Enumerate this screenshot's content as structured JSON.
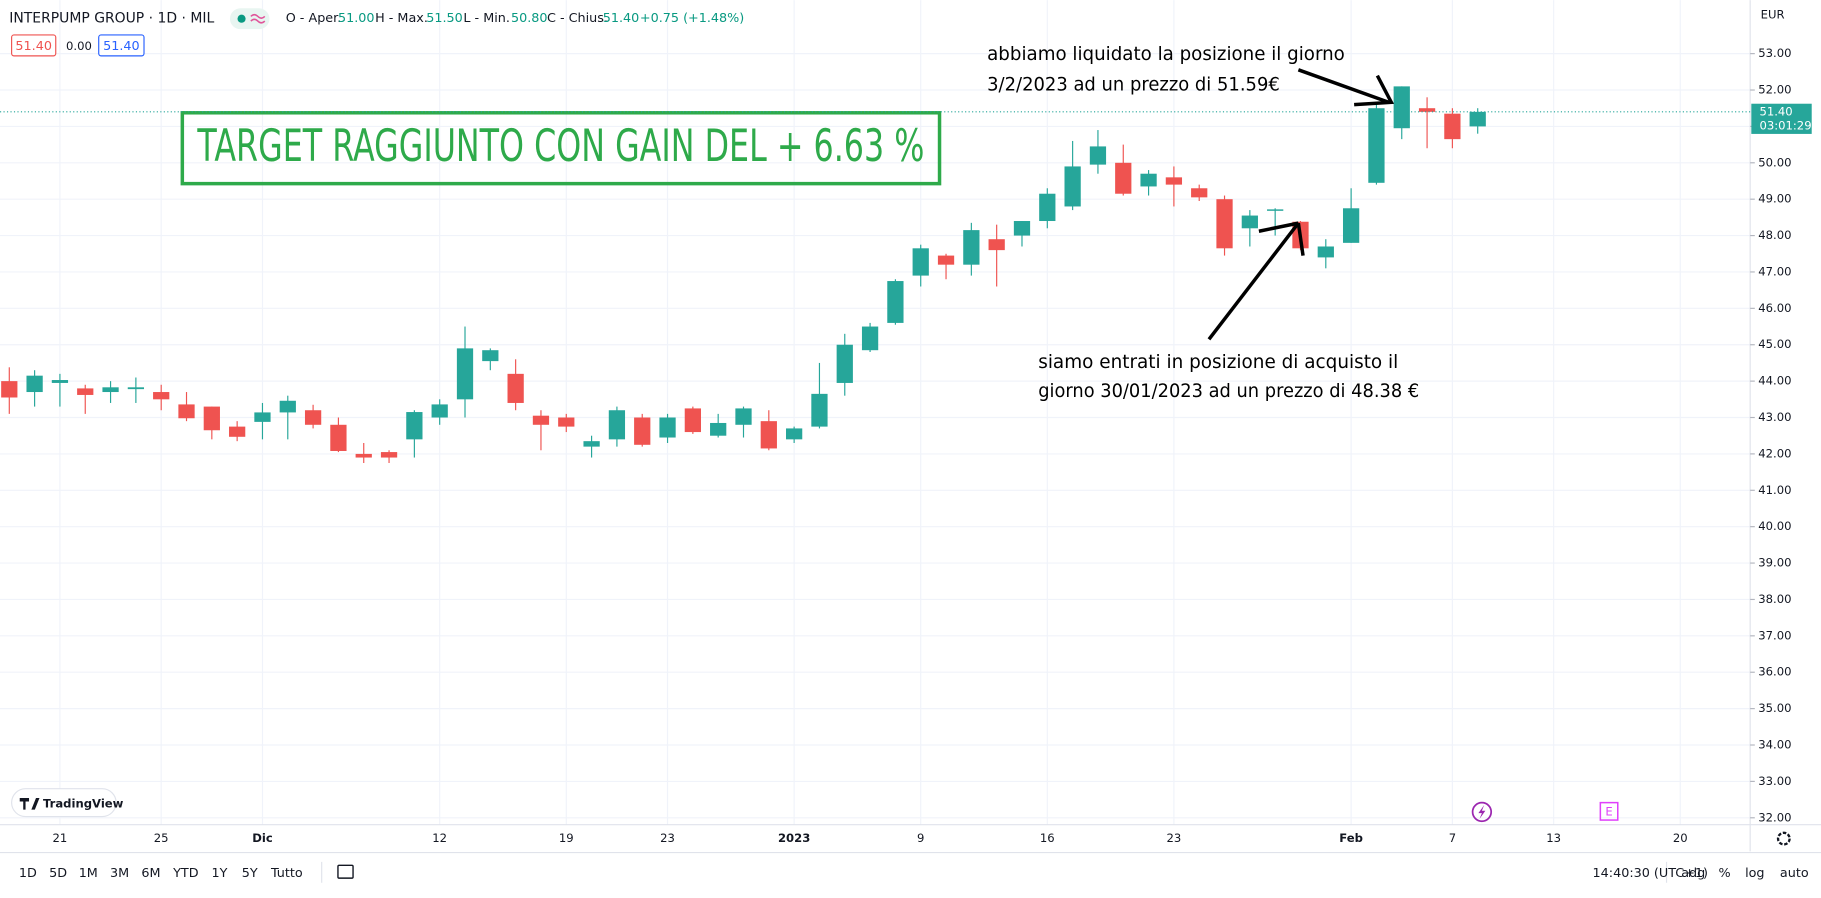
{
  "header": {
    "symbol": "INTERPUMP GROUP · 1D · MIL",
    "ohlc": [
      {
        "label": "O - Aper.",
        "value": "51.00"
      },
      {
        "label": "H - Max.",
        "value": "51.50"
      },
      {
        "label": "L - Min.",
        "value": "50.80"
      },
      {
        "label": "C - Chius.",
        "value": "51.40"
      }
    ],
    "change": "+0.75 (+1.48%)",
    "sell": "51.40",
    "spread": "0.00",
    "buy": "51.40",
    "currency": "EUR"
  },
  "chart_data": {
    "type": "candlestick",
    "categories": [
      null,
      null,
      "21",
      null,
      null,
      null,
      "25",
      null,
      null,
      null,
      "Dic",
      null,
      null,
      null,
      null,
      null,
      null,
      "12",
      null,
      null,
      null,
      null,
      "19",
      null,
      null,
      null,
      "23",
      null,
      null,
      null,
      null,
      "2023",
      null,
      null,
      null,
      null,
      "9",
      null,
      null,
      null,
      null,
      "16",
      null,
      null,
      null,
      null,
      "23",
      null,
      null,
      null,
      null,
      null,
      null,
      "Feb",
      null,
      null,
      null,
      "7",
      null,
      null,
      null,
      "13",
      null,
      null,
      null,
      null,
      "20",
      null,
      null
    ],
    "open": [
      44.0,
      43.7,
      43.95,
      43.8,
      43.7,
      43.78,
      43.7,
      43.36,
      43.3,
      42.75,
      42.88,
      43.14,
      43.2,
      42.8,
      42.0,
      42.05,
      42.4,
      43.0,
      43.5,
      44.55,
      44.2,
      43.05,
      43.0,
      42.2,
      42.4,
      43.0,
      42.45,
      43.25,
      42.5,
      42.8,
      42.9,
      42.4,
      42.75,
      43.95,
      44.85,
      45.6,
      46.9,
      47.45,
      47.2,
      47.9,
      48.0,
      48.4,
      48.8,
      49.95,
      50.0,
      49.35,
      49.6,
      49.3,
      49.0,
      48.2,
      48.68,
      48.38,
      47.4,
      47.8,
      49.45,
      50.95,
      51.5,
      51.35,
      51.0,
      null,
      null,
      null,
      null,
      null,
      null,
      null,
      null,
      null,
      null
    ],
    "high": [
      44.38,
      44.3,
      44.2,
      43.9,
      44.0,
      44.1,
      43.9,
      43.7,
      43.3,
      42.9,
      43.4,
      43.6,
      43.35,
      43.0,
      42.3,
      42.1,
      43.2,
      43.5,
      45.5,
      44.9,
      44.6,
      43.2,
      43.1,
      42.5,
      43.3,
      43.1,
      43.1,
      43.3,
      43.1,
      43.3,
      43.2,
      42.75,
      44.5,
      45.3,
      45.6,
      46.8,
      47.75,
      47.5,
      48.35,
      48.3,
      48.4,
      49.3,
      50.6,
      50.9,
      50.5,
      49.8,
      49.9,
      49.4,
      49.1,
      48.7,
      48.75,
      48.4,
      47.9,
      49.3,
      51.6,
      52.1,
      51.8,
      51.5,
      51.5,
      null,
      null,
      null,
      null,
      null,
      null,
      null,
      null,
      null,
      null
    ],
    "low": [
      43.1,
      43.3,
      43.3,
      43.1,
      43.4,
      43.4,
      43.2,
      42.9,
      42.4,
      42.35,
      42.4,
      42.4,
      42.7,
      42.05,
      41.75,
      41.75,
      41.9,
      42.8,
      43.0,
      44.3,
      43.2,
      42.1,
      42.6,
      41.9,
      42.2,
      42.2,
      42.3,
      42.55,
      42.45,
      42.45,
      42.1,
      42.3,
      42.7,
      43.6,
      44.8,
      45.55,
      46.6,
      46.8,
      46.9,
      46.6,
      47.7,
      48.2,
      48.7,
      49.7,
      49.1,
      49.1,
      48.8,
      48.95,
      47.45,
      47.7,
      48.0,
      47.6,
      47.1,
      47.8,
      49.4,
      50.65,
      50.4,
      50.4,
      50.8,
      null,
      null,
      null,
      null,
      null,
      null,
      null,
      null,
      null,
      null
    ],
    "close": [
      43.55,
      44.15,
      44.03,
      43.62,
      43.83,
      43.83,
      43.5,
      42.98,
      42.65,
      42.47,
      43.14,
      43.46,
      42.8,
      42.08,
      41.9,
      41.9,
      43.15,
      43.36,
      44.9,
      44.85,
      43.4,
      42.8,
      42.75,
      42.35,
      43.2,
      42.25,
      43.0,
      42.6,
      42.85,
      43.25,
      42.15,
      42.7,
      43.65,
      45.0,
      45.5,
      46.75,
      47.65,
      47.2,
      48.15,
      47.6,
      48.4,
      49.15,
      49.9,
      50.45,
      49.15,
      49.7,
      49.4,
      49.05,
      47.65,
      48.55,
      48.72,
      47.65,
      47.7,
      48.75,
      51.5,
      52.1,
      51.4,
      50.65,
      51.4,
      null,
      null,
      null,
      null,
      null,
      null,
      null,
      null,
      null,
      null
    ],
    "up_color": "#26a69a",
    "down_color": "#ef5350",
    "ylim": [
      31.81,
      54.47
    ],
    "yticks": [
      {
        "value": 32,
        "label": "32.00"
      },
      {
        "value": 33,
        "label": "33.00"
      },
      {
        "value": 34,
        "label": "34.00"
      },
      {
        "value": 35,
        "label": "35.00"
      },
      {
        "value": 36,
        "label": "36.00"
      },
      {
        "value": 37,
        "label": "37.00"
      },
      {
        "value": 38,
        "label": "38.00"
      },
      {
        "value": 39,
        "label": "39.00"
      },
      {
        "value": 40,
        "label": "40.00"
      },
      {
        "value": 41,
        "label": "41.00"
      },
      {
        "value": 42,
        "label": "42.00"
      },
      {
        "value": 43,
        "label": "43.00"
      },
      {
        "value": 44,
        "label": "44.00"
      },
      {
        "value": 45,
        "label": "45.00"
      },
      {
        "value": 46,
        "label": "46.00"
      },
      {
        "value": 47,
        "label": "47.00"
      },
      {
        "value": 48,
        "label": "48.00"
      },
      {
        "value": 49,
        "label": "49.00"
      },
      {
        "value": 50,
        "label": "50.00"
      },
      {
        "value": 51,
        "label": "51.00"
      },
      {
        "value": 52,
        "label": "52.00"
      },
      {
        "value": 53,
        "label": "53.00"
      }
    ],
    "grid": true,
    "last_price": {
      "value": 51.4,
      "label": "51.40"
    },
    "countdown": "03:01:29",
    "annotations": [
      "TARGET RAGGIUNTO CON GAIN DEL + 6.63 %",
      "abbiamo liquidato la posizione il giorno",
      "3/2/2023 ad un prezzo di 51.59€",
      "siamo entrati in posizione di acquisto il",
      "giorno 30/01/2023 ad un prezzo di 48.38 €"
    ],
    "earnings_marker": "E"
  },
  "logo": "TradingView",
  "toolbar": {
    "ranges": [
      "1D",
      "5D",
      "1M",
      "3M",
      "6M",
      "YTD",
      "1Y",
      "5Y",
      "Tutto"
    ],
    "time": "14:40:30 (UTC+1)",
    "options": [
      "adg",
      "%",
      "log",
      "auto"
    ]
  }
}
